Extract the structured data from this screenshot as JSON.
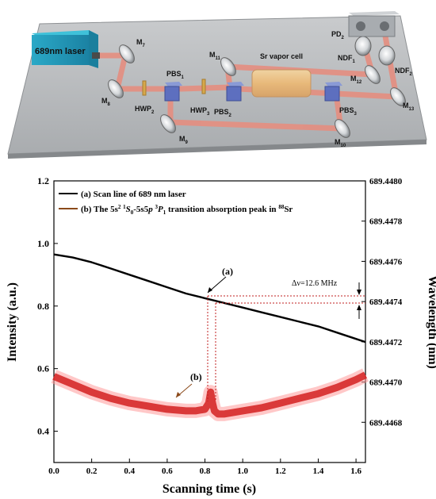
{
  "diagram": {
    "laser_label": "689nm laser",
    "cell_label": "Sr vapor cell",
    "mirrors": [
      {
        "base": "M",
        "sub": "7"
      },
      {
        "base": "M",
        "sub": "8"
      },
      {
        "base": "M",
        "sub": "9"
      },
      {
        "base": "M",
        "sub": "10"
      },
      {
        "base": "M",
        "sub": "11"
      },
      {
        "base": "M",
        "sub": "12"
      },
      {
        "base": "M",
        "sub": "13"
      }
    ],
    "pbs": [
      {
        "base": "PBS",
        "sub": "1"
      },
      {
        "base": "PBS",
        "sub": "2"
      },
      {
        "base": "PBS",
        "sub": "3"
      }
    ],
    "hwp": [
      {
        "base": "HWP",
        "sub": "2"
      },
      {
        "base": "HWP",
        "sub": "3"
      }
    ],
    "ndf": [
      {
        "base": "NDF",
        "sub": "1"
      },
      {
        "base": "NDF",
        "sub": "2"
      }
    ],
    "pd": {
      "base": "PD",
      "sub": "2"
    }
  },
  "chart_data": {
    "type": "line",
    "xlabel": "Scanning time (s)",
    "ylabel_left": "Intensity (a.u.)",
    "ylabel_right": "Wavelength (nm)",
    "xlim": [
      0.0,
      1.65
    ],
    "ylim_left": [
      0.3,
      1.2
    ],
    "ylim_right": [
      689.4466,
      689.448
    ],
    "x_ticks": [
      "0.0",
      "0.2",
      "0.4",
      "0.6",
      "0.8",
      "1.0",
      "1.2",
      "1.4",
      "1.6"
    ],
    "y_ticks_left": [
      "0.4",
      "0.6",
      "0.8",
      "1.0",
      "1.2"
    ],
    "y_ticks_right": [
      "689.4468",
      "689.4470",
      "689.4472",
      "689.4474",
      "689.4476",
      "689.4478",
      "689.4480"
    ],
    "legend": {
      "placement": "top-left",
      "entries": [
        {
          "text": "(a) Scan line of 689 nm laser",
          "color": "#000000"
        },
        {
          "text_parts": [
            "(b) The 5s",
            "2",
            " ",
            "1",
            "S",
            "0",
            "-5s5",
            "p",
            " ",
            "3",
            "P",
            "1",
            " transition absorption peak in ",
            "88",
            "Sr"
          ],
          "color": "#8b4a1a"
        }
      ]
    },
    "annotations": {
      "a": "(a)",
      "b": "(b)",
      "delta": "Δν=12.6 MHz"
    },
    "series": [
      {
        "name": "(a) Scan line of 689 nm laser",
        "axis": "left",
        "color": "#000000",
        "x": [
          0.0,
          0.1,
          0.2,
          0.3,
          0.4,
          0.5,
          0.6,
          0.7,
          0.8,
          0.9,
          1.0,
          1.1,
          1.2,
          1.3,
          1.4,
          1.5,
          1.6,
          1.65
        ],
        "y": [
          0.965,
          0.955,
          0.94,
          0.92,
          0.9,
          0.88,
          0.86,
          0.84,
          0.825,
          0.81,
          0.795,
          0.78,
          0.765,
          0.75,
          0.735,
          0.715,
          0.695,
          0.685
        ]
      },
      {
        "name": "(b) The 5s2 1S0-5s5p 3P1 transition absorption peak in 88Sr",
        "axis": "left",
        "color": "#d42020",
        "x": [
          0.0,
          0.1,
          0.2,
          0.3,
          0.4,
          0.5,
          0.6,
          0.7,
          0.75,
          0.8,
          0.82,
          0.83,
          0.84,
          0.85,
          0.87,
          0.9,
          1.0,
          1.1,
          1.2,
          1.3,
          1.4,
          1.5,
          1.6,
          1.65
        ],
        "y": [
          0.575,
          0.55,
          0.525,
          0.505,
          0.49,
          0.48,
          0.47,
          0.465,
          0.465,
          0.47,
          0.49,
          0.525,
          0.49,
          0.465,
          0.455,
          0.455,
          0.465,
          0.475,
          0.49,
          0.505,
          0.52,
          0.54,
          0.565,
          0.58
        ]
      }
    ]
  }
}
